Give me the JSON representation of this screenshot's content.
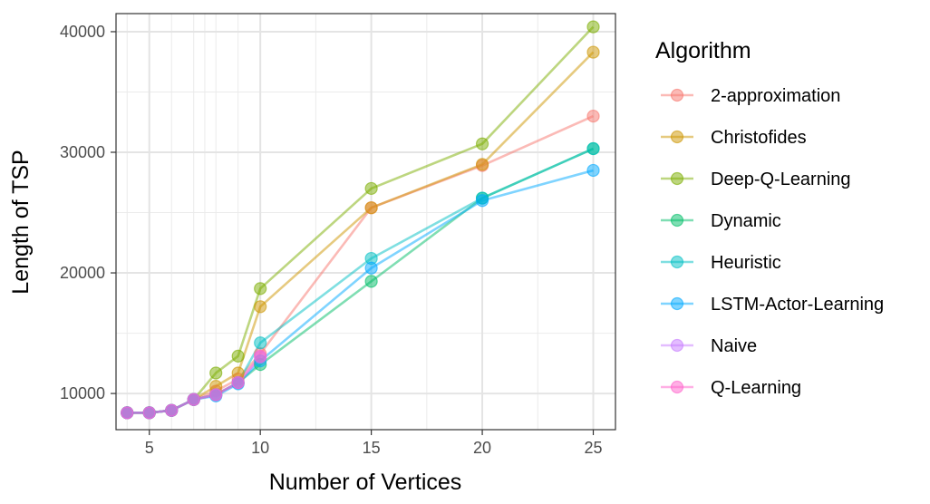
{
  "chart_data": {
    "type": "line",
    "xlabel": "Number of Vertices",
    "ylabel": "Length of TSP",
    "xlim": [
      3.5,
      26.0
    ],
    "ylim": [
      7000,
      41500
    ],
    "x_ticks": [
      5,
      10,
      15,
      20,
      25
    ],
    "y_ticks": [
      10000,
      20000,
      30000,
      40000
    ],
    "grid": true,
    "legend": {
      "title": "Algorithm",
      "placement": "right"
    },
    "x": [
      4,
      5,
      6,
      7,
      8,
      9,
      10,
      15,
      20,
      25
    ],
    "series": [
      {
        "name": "2-approximation",
        "color": "#F8766D",
        "values": [
          8400,
          8400,
          8600,
          9500,
          10200,
          11200,
          13300,
          25400,
          28900,
          33000
        ]
      },
      {
        "name": "Christofides",
        "color": "#CD9600",
        "values": [
          8400,
          8400,
          8600,
          9500,
          10600,
          11700,
          17200,
          25400,
          29000,
          38300
        ]
      },
      {
        "name": "Deep-Q-Learning",
        "color": "#7CAE00",
        "values": [
          8400,
          8400,
          8600,
          9500,
          11700,
          13100,
          18700,
          27000,
          30700,
          40400
        ]
      },
      {
        "name": "Dynamic",
        "color": "#00BE67",
        "values": [
          8400,
          8400,
          8600,
          9500,
          9900,
          10900,
          12400,
          19300,
          26200,
          30300
        ]
      },
      {
        "name": "Heuristic",
        "color": "#00BFC4",
        "values": [
          8400,
          8400,
          8600,
          9500,
          9900,
          10900,
          14200,
          21200,
          26200,
          30300
        ]
      },
      {
        "name": "LSTM-Actor-Learning",
        "color": "#00A9FF",
        "values": [
          8400,
          8400,
          8600,
          9500,
          9800,
          10800,
          12700,
          20400,
          26000,
          28500
        ]
      },
      {
        "name": "Naive",
        "color": "#C77CFF",
        "values": [
          8400,
          8400,
          8600,
          9500,
          9900,
          10900,
          13000,
          null,
          null,
          null
        ]
      },
      {
        "name": "Q-Learning",
        "color": "#FF61CC",
        "values": [
          8400,
          8400,
          8600,
          9500,
          9900,
          10900,
          13100,
          null,
          null,
          null
        ]
      }
    ]
  }
}
